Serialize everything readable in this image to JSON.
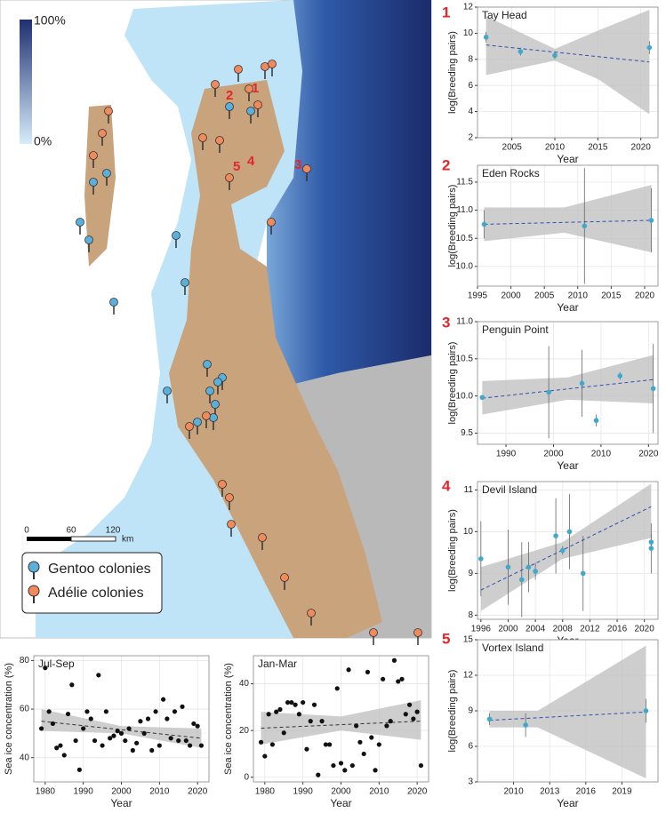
{
  "map": {
    "colorbar": {
      "max_label": "100%",
      "min_label": "0%"
    },
    "scale_bar": {
      "labels": [
        "0",
        "60",
        "120"
      ],
      "unit": "km"
    },
    "legend": [
      "Gentoo colonies",
      "Adélie colonies"
    ],
    "site_labels": [
      "1",
      "2",
      "3",
      "4",
      "5"
    ]
  },
  "chart_data": [
    {
      "type": "scatter",
      "panel_label": "1",
      "title": "Tay Head",
      "x_label": "Year",
      "y_label": "log(Breeding pairs)",
      "color": "#3fa9cc",
      "x": [
        2002,
        2006,
        2010,
        2021
      ],
      "values": [
        9.7,
        8.6,
        8.3,
        8.9
      ],
      "errors": [
        0.4,
        0.3,
        0.3,
        0.5
      ],
      "trend": {
        "x": [
          2002,
          2021
        ],
        "values": [
          9.1,
          7.8
        ]
      },
      "band": {
        "x": [
          2002,
          2010,
          2015,
          2021
        ],
        "low": [
          6.8,
          7.9,
          6.5,
          3.8
        ],
        "high": [
          11.3,
          8.8,
          10.2,
          11.8
        ]
      },
      "xlim": [
        2001,
        2022
      ],
      "ylim": [
        2,
        12
      ],
      "xticks": [
        2005,
        2010,
        2015,
        2020
      ],
      "yticks": [
        2,
        4,
        6,
        8,
        10,
        12
      ]
    },
    {
      "type": "scatter",
      "panel_label": "2",
      "title": "Eden Rocks",
      "x_label": "Year",
      "y_label": "log(Breeding pairs)",
      "color": "#3fa9cc",
      "x": [
        1996,
        2011,
        2021
      ],
      "values": [
        10.75,
        10.72,
        10.82
      ],
      "errors": [
        0.25,
        1.03,
        0.57
      ],
      "trend": {
        "x": [
          1996,
          2021
        ],
        "values": [
          10.75,
          10.82
        ]
      },
      "band": {
        "x": [
          1996,
          2008,
          2021
        ],
        "low": [
          10.45,
          10.6,
          10.25
        ],
        "high": [
          11.05,
          11.05,
          11.45
        ]
      },
      "xlim": [
        1995,
        2022
      ],
      "ylim": [
        9.65,
        11.8
      ],
      "xticks": [
        1995,
        2000,
        2005,
        2010,
        2015,
        2020
      ],
      "yticks": [
        {
          "value": 10,
          "label": "10.0"
        },
        10.5,
        {
          "value": 11,
          "label": "11.0"
        },
        11.5
      ]
    },
    {
      "type": "scatter",
      "panel_label": "3",
      "title": "Penguin Point",
      "x_label": "Year",
      "y_label": "log(Breeding pairs)",
      "color": "#3fa9cc",
      "x": [
        1985,
        1999,
        2006,
        2009,
        2014,
        2021
      ],
      "values": [
        9.98,
        10.05,
        10.17,
        9.67,
        10.27,
        10.1
      ],
      "errors": [
        0.03,
        0.62,
        0.45,
        0.08,
        0.05,
        0.6
      ],
      "trend": {
        "x": [
          1985,
          2021
        ],
        "values": [
          9.97,
          10.22
        ]
      },
      "band": {
        "x": [
          1985,
          2003,
          2021
        ],
        "low": [
          9.75,
          9.95,
          9.9
        ],
        "high": [
          10.2,
          10.25,
          10.55
        ]
      },
      "xlim": [
        1984,
        2022
      ],
      "ylim": [
        9.35,
        11.0
      ],
      "xticks": [
        1990,
        2000,
        2010,
        2020
      ],
      "yticks": [
        9.5,
        {
          "value": 10,
          "label": "10.0"
        },
        10.5,
        {
          "value": 11,
          "label": "11.0"
        }
      ]
    },
    {
      "type": "scatter",
      "panel_label": "4",
      "title": "Devil Island",
      "x_label": "Year",
      "y_label": "log(Breeding pairs)",
      "color": "#3fa9cc",
      "x": [
        1996,
        2000,
        2002,
        2003,
        2004,
        2007,
        2008,
        2009,
        2011,
        2021,
        2021
      ],
      "values": [
        9.35,
        9.15,
        8.85,
        9.15,
        9.05,
        9.9,
        9.55,
        10.0,
        9.0,
        9.75,
        9.6
      ],
      "errors": [
        0.9,
        0.9,
        0.9,
        0.6,
        0.2,
        0.9,
        0.1,
        0.9,
        0.9,
        0.2,
        0.6
      ],
      "trend": {
        "x": [
          1996,
          2021
        ],
        "values": [
          8.6,
          10.6
        ]
      },
      "band": {
        "x": [
          1996,
          2008,
          2021
        ],
        "low": [
          8.1,
          9.35,
          9.85
        ],
        "high": [
          9.15,
          9.75,
          11.15
        ]
      },
      "xlim": [
        1995.5,
        2022
      ],
      "ylim": [
        7.9,
        11.2
      ],
      "xticks": [
        1996,
        2000,
        2004,
        2008,
        2012,
        2016,
        2020
      ],
      "yticks": [
        8,
        9,
        10,
        11
      ]
    },
    {
      "type": "scatter",
      "panel_label": "5",
      "title": "Vortex Island",
      "x_label": "Year",
      "y_label": "log(Breeding pairs)",
      "color": "#3fa9cc",
      "x": [
        2008,
        2011,
        2021
      ],
      "values": [
        8.3,
        7.8,
        9.0
      ],
      "errors": [
        0.5,
        1.0,
        1.0
      ],
      "trend": {
        "x": [
          2008,
          2021
        ],
        "values": [
          8.2,
          8.9
        ]
      },
      "band": {
        "x": [
          2008,
          2012,
          2021
        ],
        "low": [
          7.6,
          7.6,
          3.3
        ],
        "high": [
          9.0,
          9.0,
          14.5
        ]
      },
      "xlim": [
        2007,
        2022
      ],
      "ylim": [
        3,
        15
      ],
      "xticks": [
        2010,
        2013,
        2016,
        2019
      ],
      "yticks": [
        3,
        6,
        9,
        12,
        15
      ]
    },
    {
      "type": "scatter",
      "title": "Jul-Sep",
      "x_label": "Year",
      "y_label": "Sea ice concentration (%)",
      "color": "#111111",
      "x": [
        1979,
        1980,
        1981,
        1982,
        1983,
        1984,
        1985,
        1986,
        1987,
        1988,
        1989,
        1990,
        1991,
        1992,
        1993,
        1994,
        1995,
        1996,
        1997,
        1998,
        1999,
        2000,
        2001,
        2002,
        2003,
        2004,
        2005,
        2006,
        2007,
        2008,
        2009,
        2010,
        2011,
        2012,
        2013,
        2014,
        2015,
        2016,
        2017,
        2018,
        2019,
        2020,
        2021
      ],
      "values": [
        52,
        77,
        59,
        54,
        44,
        45,
        41,
        58,
        70,
        47,
        35,
        52,
        59,
        56,
        47,
        74,
        45,
        59,
        48,
        49,
        51,
        50,
        47,
        52,
        43,
        46,
        55,
        50,
        56,
        43,
        59,
        45,
        64,
        56,
        48,
        59,
        47,
        61,
        47,
        45,
        54,
        53,
        45
      ],
      "trend": {
        "x": [
          1979,
          2021
        ],
        "values": [
          55,
          48
        ]
      },
      "band": {
        "x": [
          1979,
          2000,
          2021
        ],
        "low": [
          51,
          50,
          44
        ],
        "high": [
          60,
          53,
          52
        ]
      },
      "xlim": [
        1977,
        2023
      ],
      "ylim": [
        30,
        82
      ],
      "xticks": [
        1980,
        1990,
        2000,
        2010,
        2020
      ],
      "yticks": [
        40,
        60,
        80
      ]
    },
    {
      "type": "scatter",
      "title": "Jan-Mar",
      "x_label": "Year",
      "y_label": "Sea ice concentration (%)",
      "color": "#111111",
      "x": [
        1979,
        1980,
        1981,
        1982,
        1983,
        1984,
        1985,
        1986,
        1987,
        1988,
        1989,
        1990,
        1991,
        1992,
        1993,
        1994,
        1995,
        1996,
        1997,
        1998,
        1999,
        2000,
        2001,
        2002,
        2003,
        2004,
        2005,
        2006,
        2007,
        2008,
        2009,
        2010,
        2011,
        2012,
        2013,
        2014,
        2015,
        2016,
        2017,
        2018,
        2019,
        2020,
        2021
      ],
      "values": [
        15,
        9,
        27,
        14,
        28,
        29,
        19,
        32,
        32,
        31,
        27,
        32,
        12,
        24,
        31,
        1,
        24,
        14,
        14,
        5,
        38,
        6,
        3,
        46,
        5,
        22,
        15,
        10,
        45,
        17,
        3,
        14,
        42,
        22,
        24,
        50,
        41,
        42,
        27,
        31,
        25,
        28,
        5
      ],
      "trend": {
        "x": [
          1979,
          2021
        ],
        "values": [
          21,
          24
        ]
      },
      "band": {
        "x": [
          1979,
          2000,
          2021
        ],
        "low": [
          14,
          20,
          16
        ],
        "high": [
          28,
          26,
          33
        ]
      },
      "xlim": [
        1977,
        2023
      ],
      "ylim": [
        -2,
        52
      ],
      "xticks": [
        1980,
        1990,
        2000,
        2010,
        2020
      ],
      "yticks": [
        0,
        20,
        40
      ]
    }
  ]
}
